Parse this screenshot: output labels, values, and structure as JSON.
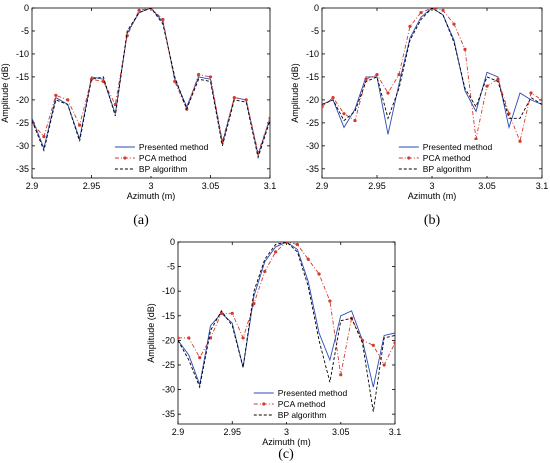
{
  "chart_data": [
    {
      "type": "line",
      "panel_label": "(a)",
      "xlabel": "Azimuth (m)",
      "ylabel": "Amplitude (dB)",
      "xlim": [
        2.9,
        3.1
      ],
      "ylim": [
        -37,
        0
      ],
      "xticks": [
        "2.9",
        "2.95",
        "3",
        "3.05",
        "3.1"
      ],
      "yticks": [
        "0",
        "-5",
        "-10",
        "-15",
        "-20",
        "-25",
        "-30",
        "-35"
      ],
      "legend": "bottom-center",
      "series": [
        {
          "name": "Presented method",
          "color": "#2b4bb5",
          "style": "solid",
          "x": [
            2.9,
            2.91,
            2.92,
            2.93,
            2.94,
            2.95,
            2.96,
            2.97,
            2.98,
            2.99,
            3.0,
            3.01,
            3.02,
            3.03,
            3.04,
            3.05,
            3.06,
            3.07,
            3.08,
            3.09,
            3.1
          ],
          "y": [
            -24,
            -30.5,
            -19.5,
            -21,
            -28.5,
            -15,
            -15.5,
            -23,
            -5.5,
            -1,
            0,
            -3,
            -15.5,
            -21.5,
            -15,
            -15.5,
            -29.5,
            -19.5,
            -20,
            -32,
            -24
          ]
        },
        {
          "name": "PCA method",
          "color": "#d33a2c",
          "style": "dashed-dot",
          "x": [
            2.9,
            2.91,
            2.92,
            2.93,
            2.94,
            2.95,
            2.96,
            2.97,
            2.98,
            2.99,
            3.0,
            3.01,
            3.02,
            3.03,
            3.04,
            3.05,
            3.06,
            3.07,
            3.08,
            3.09,
            3.1
          ],
          "y": [
            -25,
            -28,
            -19,
            -20,
            -25.5,
            -15.5,
            -16,
            -21,
            -6,
            -0.5,
            0,
            -2.5,
            -16,
            -22,
            -14.5,
            -15,
            -29,
            -19.5,
            -20,
            -31.5,
            -24
          ]
        },
        {
          "name": "BP algorithm",
          "color": "#000000",
          "style": "dashed",
          "x": [
            2.9,
            2.91,
            2.92,
            2.93,
            2.94,
            2.95,
            2.96,
            2.97,
            2.98,
            2.99,
            3.0,
            3.01,
            3.02,
            3.03,
            3.04,
            3.05,
            3.06,
            3.07,
            3.08,
            3.09,
            3.1
          ],
          "y": [
            -24.5,
            -31,
            -20,
            -21,
            -29,
            -15.5,
            -15,
            -23.5,
            -5,
            -1,
            0,
            -3.5,
            -15,
            -22,
            -15.5,
            -16,
            -30,
            -20,
            -20.5,
            -32.5,
            -24.5
          ]
        }
      ]
    },
    {
      "type": "line",
      "panel_label": "(b)",
      "xlabel": "Azimuth (m)",
      "ylabel": "Amplitude (dB)",
      "xlim": [
        2.9,
        3.1
      ],
      "ylim": [
        -37,
        0
      ],
      "xticks": [
        "2.9",
        "2.95",
        "3",
        "3.05",
        "3.1"
      ],
      "yticks": [
        "0",
        "-5",
        "-10",
        "-15",
        "-20",
        "-25",
        "-30",
        "-35"
      ],
      "legend": "bottom-center",
      "series": [
        {
          "name": "Presented method",
          "color": "#2b4bb5",
          "style": "solid",
          "x": [
            2.9,
            2.91,
            2.92,
            2.93,
            2.94,
            2.95,
            2.96,
            2.97,
            2.98,
            2.99,
            3.0,
            3.01,
            3.02,
            3.03,
            3.04,
            3.05,
            3.06,
            3.07,
            3.08,
            3.09,
            3.1
          ],
          "y": [
            -21,
            -20,
            -26,
            -22,
            -15,
            -15,
            -27.5,
            -16.5,
            -6.5,
            -2,
            0,
            -1.5,
            -7,
            -18,
            -22.5,
            -14,
            -15,
            -26,
            -18.5,
            -20,
            -21
          ]
        },
        {
          "name": "PCA method",
          "color": "#d33a2c",
          "style": "dashed-dot",
          "x": [
            2.9,
            2.91,
            2.92,
            2.93,
            2.94,
            2.95,
            2.96,
            2.97,
            2.98,
            2.99,
            3.0,
            3.01,
            3.02,
            3.03,
            3.04,
            3.05,
            3.06,
            3.07,
            3.08,
            3.09,
            3.1
          ],
          "y": [
            -21.5,
            -19.5,
            -23,
            -24.5,
            -15.5,
            -14.5,
            -18.5,
            -14.5,
            -4,
            -1,
            0,
            -0.5,
            -3.5,
            -9,
            -28.5,
            -17,
            -15.5,
            -23,
            -29,
            -18.5,
            -20
          ]
        },
        {
          "name": "BP algorithm",
          "color": "#000000",
          "style": "dashed",
          "x": [
            2.9,
            2.91,
            2.92,
            2.93,
            2.94,
            2.95,
            2.96,
            2.97,
            2.98,
            2.99,
            3.0,
            3.01,
            3.02,
            3.03,
            3.04,
            3.05,
            3.06,
            3.07,
            3.08,
            3.09,
            3.1
          ],
          "y": [
            -21,
            -20,
            -24.5,
            -22.5,
            -16,
            -15,
            -24,
            -17.5,
            -7,
            -2.5,
            0,
            -1.5,
            -7.5,
            -17.5,
            -21.5,
            -15,
            -16,
            -24,
            -24,
            -19.5,
            -21
          ]
        }
      ]
    },
    {
      "type": "line",
      "panel_label": "(c)",
      "xlabel": "Azimuth (m)",
      "ylabel": "Amplitude (dB)",
      "xlim": [
        2.9,
        3.1
      ],
      "ylim": [
        -37,
        0
      ],
      "xticks": [
        "2.9",
        "2.95",
        "3",
        "3.05",
        "3.1"
      ],
      "yticks": [
        "0",
        "-5",
        "-10",
        "-15",
        "-20",
        "-25",
        "-30",
        "-35"
      ],
      "legend": "bottom-center",
      "series": [
        {
          "name": "Presented method",
          "color": "#2b4bb5",
          "style": "solid",
          "x": [
            2.9,
            2.91,
            2.92,
            2.93,
            2.94,
            2.95,
            2.96,
            2.97,
            2.98,
            2.99,
            3.0,
            3.01,
            3.02,
            3.03,
            3.04,
            3.05,
            3.06,
            3.07,
            3.08,
            3.09,
            3.1
          ],
          "y": [
            -20,
            -23,
            -29,
            -17,
            -14.5,
            -16.5,
            -25.5,
            -11,
            -4,
            -1,
            0,
            -1.5,
            -8,
            -18.5,
            -24,
            -15,
            -14,
            -20,
            -29.5,
            -19,
            -18.5
          ]
        },
        {
          "name": "PCA method",
          "color": "#d33a2c",
          "style": "dashed-dot",
          "x": [
            2.9,
            2.91,
            2.92,
            2.93,
            2.94,
            2.95,
            2.96,
            2.97,
            2.98,
            2.99,
            3.0,
            3.01,
            3.02,
            3.03,
            3.04,
            3.05,
            3.06,
            3.07,
            3.08,
            3.09,
            3.1
          ],
          "y": [
            -19.5,
            -19.5,
            -23.5,
            -19.5,
            -14.5,
            -14.5,
            -19.5,
            -12.5,
            -6,
            -2,
            0,
            -0.5,
            -3.5,
            -6.5,
            -12,
            -27,
            -15.5,
            -20,
            -21,
            -25,
            -20.5
          ]
        },
        {
          "name": "BP algorithm",
          "color": "#000000",
          "style": "dashed",
          "x": [
            2.9,
            2.91,
            2.92,
            2.93,
            2.94,
            2.95,
            2.96,
            2.97,
            2.98,
            2.99,
            3.0,
            3.01,
            3.02,
            3.03,
            3.04,
            3.05,
            3.06,
            3.07,
            3.08,
            3.09,
            3.1
          ],
          "y": [
            -20,
            -24,
            -29.5,
            -18,
            -14,
            -17,
            -25.5,
            -10,
            -3.5,
            -0.5,
            0,
            -2,
            -9,
            -20,
            -28.5,
            -16,
            -15.5,
            -20.5,
            -34.5,
            -19.5,
            -19
          ]
        }
      ]
    }
  ]
}
